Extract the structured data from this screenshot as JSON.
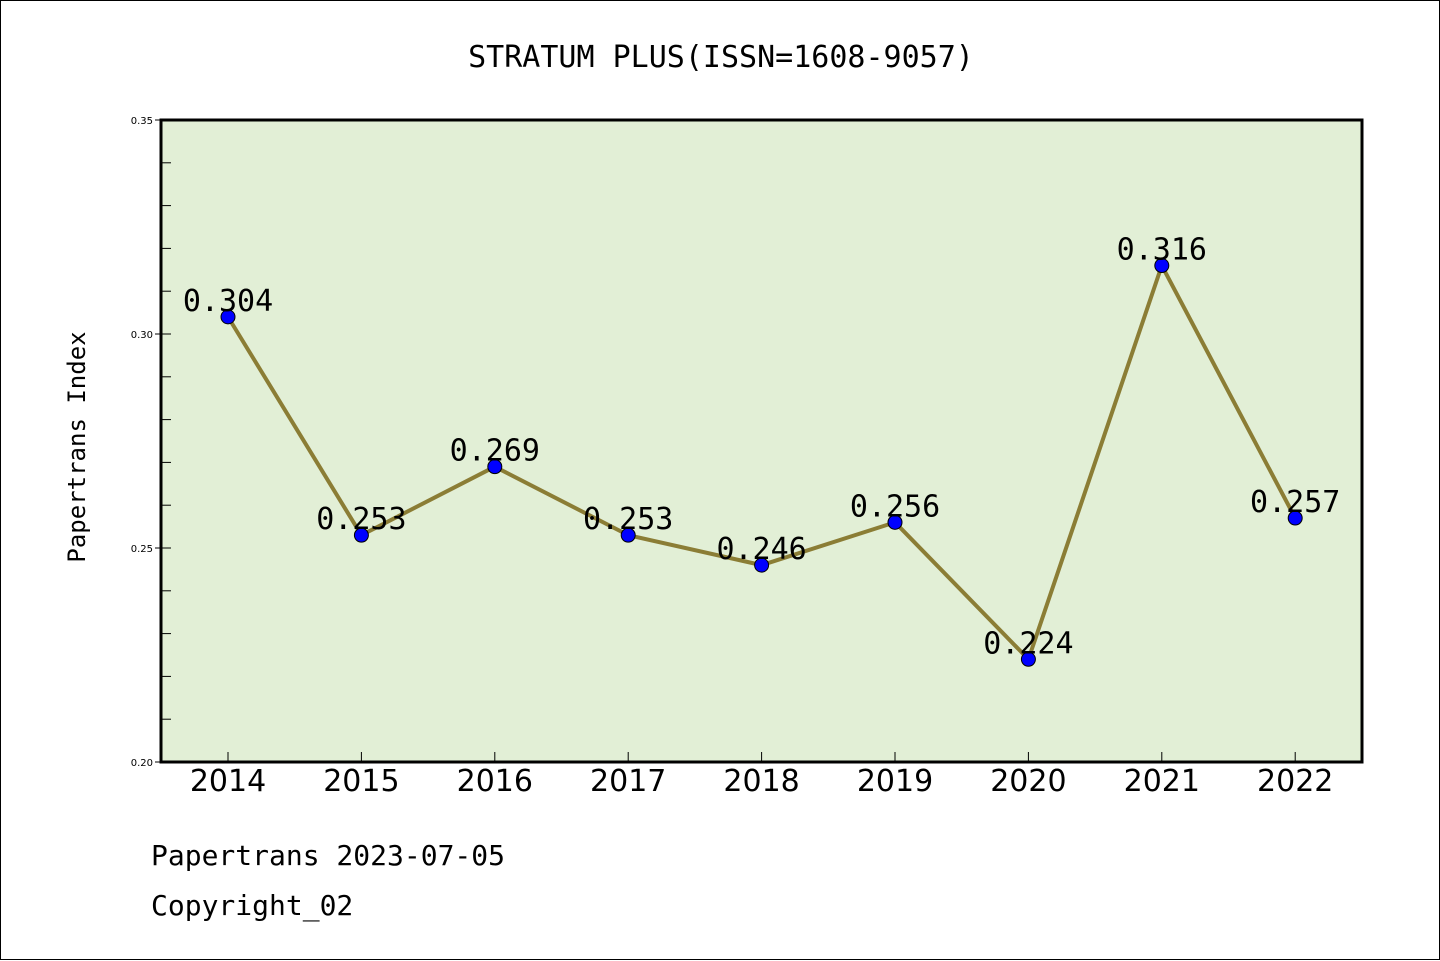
{
  "colors": {
    "plot_background": "#e2efd6",
    "line": "#8b7d35",
    "marker": "#0000ff",
    "axis": "#000000"
  },
  "footer": {
    "line1": "Papertrans 2023-07-05",
    "line2": "Copyright_02"
  },
  "chart_data": {
    "type": "line",
    "title": "STRATUM PLUS(ISSN=1608-9057)",
    "xlabel": "",
    "ylabel": "Papertrans Index",
    "categories": [
      "2014",
      "2015",
      "2016",
      "2017",
      "2018",
      "2019",
      "2020",
      "2021",
      "2022"
    ],
    "series": [
      {
        "values": [
          0.304,
          0.253,
          0.269,
          0.253,
          0.246,
          0.256,
          0.224,
          0.316,
          0.257
        ],
        "labels": [
          "0.304",
          "0.253",
          "0.269",
          "0.253",
          "0.246",
          "0.256",
          "0.224",
          "0.316",
          "0.257"
        ]
      }
    ],
    "ylim": [
      0.2,
      0.35
    ],
    "yticks": [
      "0.20",
      "0.25",
      "0.30",
      "0.35"
    ],
    "grid": false,
    "legend": "none"
  }
}
